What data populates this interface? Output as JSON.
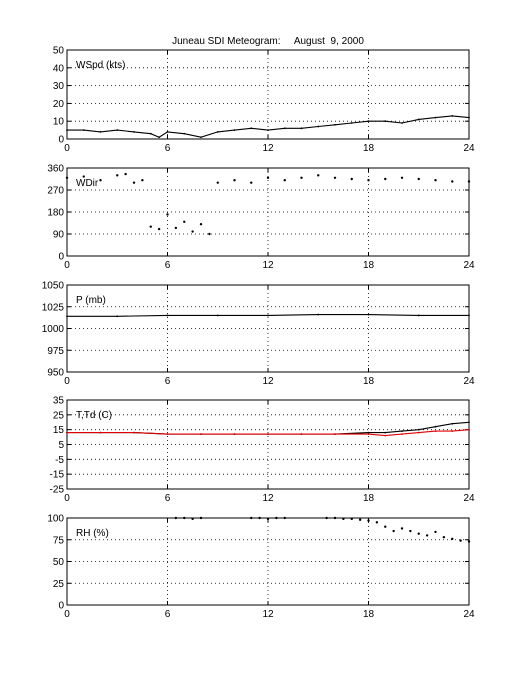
{
  "figure": {
    "title": "Juneau SDI Meteogram:     August  9, 2000"
  },
  "chart_data": [
    {
      "type": "line",
      "id": "wspd",
      "label": "WSpd (kts)",
      "xlim": [
        0,
        24
      ],
      "ylim": [
        0,
        50
      ],
      "xticks": [
        0,
        6,
        12,
        18,
        24
      ],
      "yticks": [
        0,
        10,
        20,
        30,
        40,
        50
      ],
      "grid": true,
      "series": [
        {
          "color": "#000000",
          "x": [
            0,
            1,
            2,
            3,
            4,
            5,
            5.5,
            6,
            7,
            8,
            9,
            10,
            11,
            12,
            13,
            14,
            15,
            16,
            17,
            18,
            19,
            20,
            21,
            22,
            23,
            24
          ],
          "values": [
            5,
            5,
            4,
            5,
            4,
            3,
            1,
            4,
            3,
            1,
            4,
            5,
            6,
            5,
            6,
            6,
            7,
            8,
            9,
            10,
            10,
            9,
            11,
            12,
            13,
            12
          ]
        }
      ]
    },
    {
      "type": "scatter",
      "id": "wdir",
      "label": "WDir",
      "xlim": [
        0,
        24
      ],
      "ylim": [
        0,
        360
      ],
      "xticks": [
        0,
        6,
        12,
        18,
        24
      ],
      "yticks": [
        0,
        90,
        180,
        270,
        360
      ],
      "grid": true,
      "series": [
        {
          "color": "#000000",
          "x": [
            0,
            1,
            2,
            3,
            3.5,
            4,
            4.5,
            5,
            5.5,
            6,
            6.5,
            7,
            7.5,
            8,
            8.5,
            9,
            10,
            11,
            12,
            13,
            14,
            15,
            16,
            17,
            18,
            19,
            20,
            21,
            22,
            23,
            24
          ],
          "values": [
            320,
            325,
            310,
            330,
            335,
            300,
            310,
            120,
            110,
            170,
            115,
            140,
            100,
            130,
            90,
            300,
            310,
            300,
            320,
            310,
            320,
            330,
            320,
            315,
            310,
            315,
            320,
            315,
            310,
            305,
            305
          ]
        }
      ]
    },
    {
      "type": "line",
      "id": "pressure",
      "label": "P (mb)",
      "xlim": [
        0,
        24
      ],
      "ylim": [
        950,
        1050
      ],
      "xticks": [
        0,
        6,
        12,
        18,
        24
      ],
      "yticks": [
        950,
        975,
        1000,
        1025,
        1050
      ],
      "grid": true,
      "series": [
        {
          "color": "#000000",
          "x": [
            0,
            3,
            6,
            9,
            12,
            15,
            18,
            21,
            24
          ],
          "values": [
            1014,
            1014,
            1015,
            1015,
            1015,
            1016,
            1016,
            1015,
            1015
          ]
        }
      ]
    },
    {
      "type": "line",
      "id": "temperature",
      "label": "T,Td (C)",
      "xlim": [
        0,
        24
      ],
      "ylim": [
        -25,
        35
      ],
      "xticks": [
        0,
        6,
        12,
        18,
        24
      ],
      "yticks": [
        -25,
        -15,
        -5,
        5,
        15,
        25,
        35
      ],
      "grid": true,
      "series": [
        {
          "color": "#000000",
          "x": [
            0,
            2,
            4,
            6,
            8,
            10,
            12,
            14,
            16,
            18,
            19,
            20,
            21,
            22,
            23,
            24
          ],
          "values": [
            13,
            13,
            13,
            12,
            12,
            12,
            12,
            12,
            12,
            13,
            13,
            14,
            15,
            17,
            19,
            20
          ]
        },
        {
          "color": "#e00000",
          "x": [
            0,
            2,
            4,
            6,
            8,
            10,
            12,
            14,
            16,
            18,
            19,
            20,
            21,
            22,
            23,
            24
          ],
          "values": [
            13,
            13,
            13,
            12,
            12,
            12,
            12,
            12,
            12,
            12,
            11,
            12,
            13,
            14,
            14,
            15
          ]
        }
      ]
    },
    {
      "type": "scatter",
      "id": "rh",
      "label": "RH (%)",
      "xlim": [
        0,
        24
      ],
      "ylim": [
        0,
        100
      ],
      "xticks": [
        0,
        6,
        12,
        18,
        24
      ],
      "yticks": [
        0,
        25,
        50,
        75,
        100
      ],
      "grid": true,
      "series": [
        {
          "color": "#000000",
          "x": [
            6.5,
            7,
            7.5,
            8,
            11,
            11.5,
            12,
            12.5,
            13,
            15.5,
            16,
            16.5,
            17,
            17.5,
            18,
            18.5,
            19,
            19.5,
            20,
            20.5,
            21,
            21.5,
            22,
            22.5,
            23,
            23.5,
            24
          ],
          "values": [
            100,
            100,
            99,
            100,
            100,
            100,
            99,
            100,
            100,
            100,
            100,
            99,
            99,
            98,
            97,
            95,
            90,
            85,
            88,
            85,
            82,
            80,
            84,
            78,
            76,
            74,
            73
          ]
        }
      ]
    }
  ]
}
